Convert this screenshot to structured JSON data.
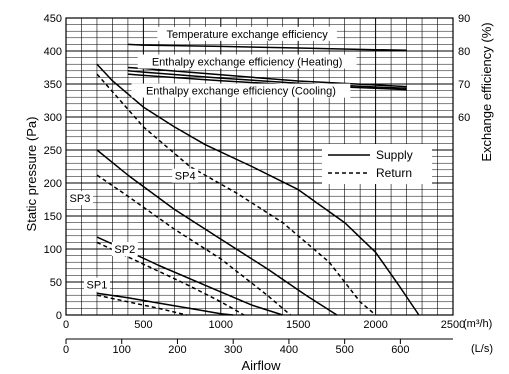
{
  "chart_data": {
    "type": "line",
    "ylabel_left": "Static pressure (Pa)",
    "ylabel_right": "Exchange efficiency (%)",
    "xlabel": "Airflow",
    "x_primary_unit": "(m³/h)",
    "x_secondary_unit": "(L/s)",
    "x_primary_range": [
      0,
      2500
    ],
    "x_primary_ticks": [
      0,
      500,
      1000,
      1500,
      2000,
      2500
    ],
    "x_secondary_range": [
      0,
      694.44
    ],
    "x_secondary_ticks": [
      0,
      100,
      200,
      300,
      400,
      500,
      600
    ],
    "y_left_range": [
      0,
      450
    ],
    "y_left_ticks": [
      0,
      50,
      100,
      150,
      200,
      250,
      300,
      350,
      400,
      450
    ],
    "y_right_range": [
      0,
      90
    ],
    "y_right_ticks_shown": [
      60,
      70,
      80,
      90
    ],
    "grid": true,
    "legend": {
      "placement": "right-middle",
      "entries": [
        {
          "label": "Supply",
          "style": "solid"
        },
        {
          "label": "Return",
          "style": "dashed"
        }
      ]
    },
    "pressure_series": [
      {
        "label": "SP4",
        "type": "Supply",
        "x": [
          200,
          300,
          500,
          700,
          900,
          1200,
          1500,
          1800,
          2000,
          2150,
          2280
        ],
        "y": [
          380,
          355,
          315,
          285,
          258,
          225,
          190,
          140,
          95,
          45,
          0
        ]
      },
      {
        "label": "SP4",
        "type": "Return",
        "x": [
          200,
          500,
          800,
          1100,
          1400,
          1700,
          1900,
          2000
        ],
        "y": [
          365,
          285,
          225,
          185,
          140,
          80,
          20,
          0
        ]
      },
      {
        "label": "SP3",
        "type": "Supply",
        "x": [
          200,
          400,
          700,
          1000,
          1300,
          1550,
          1750
        ],
        "y": [
          250,
          212,
          160,
          115,
          70,
          30,
          0
        ]
      },
      {
        "label": "SP3",
        "type": "Return",
        "x": [
          200,
          400,
          700,
          1000,
          1300,
          1450
        ],
        "y": [
          212,
          180,
          130,
          85,
          30,
          0
        ]
      },
      {
        "label": "SP2",
        "type": "Supply",
        "x": [
          200,
          400,
          600,
          800,
          1000,
          1200,
          1400
        ],
        "y": [
          118,
          97,
          75,
          55,
          35,
          15,
          0
        ]
      },
      {
        "label": "SP2",
        "type": "Return",
        "x": [
          200,
          400,
          600,
          800,
          1000,
          1150
        ],
        "y": [
          110,
          88,
          66,
          44,
          20,
          0
        ]
      },
      {
        "label": "SP1",
        "type": "Supply",
        "x": [
          200,
          400,
          600,
          800,
          1000,
          1080
        ],
        "y": [
          33,
          26,
          18,
          10,
          2,
          0
        ]
      },
      {
        "label": "SP1",
        "type": "Return",
        "x": [
          200,
          400,
          600,
          780
        ],
        "y": [
          30,
          20,
          10,
          0
        ]
      }
    ],
    "efficiency_series": [
      {
        "label": "Temperature exchange efficiency",
        "x": [
          400,
          500,
          1000,
          1500,
          2000,
          2200
        ],
        "y": [
          82,
          81.8,
          81.4,
          80.9,
          80.4,
          80.2
        ]
      },
      {
        "label": "Enthalpy exchange efficiency (Heating)",
        "x": [
          400,
          500,
          1000,
          1500,
          2000,
          2200
        ],
        "y": [
          75,
          74.7,
          72.8,
          70.9,
          69.7,
          69.2
        ]
      },
      {
        "label": "Enthalpy exchange efficiency (Heating)",
        "x": [
          400,
          500,
          1000,
          1500,
          2000,
          2200
        ],
        "y": [
          74,
          73.6,
          71.8,
          70.2,
          69.1,
          68.7
        ]
      },
      {
        "label": "Enthalpy exchange efficiency (Cooling)",
        "x": [
          400,
          500,
          1000,
          1500,
          2000,
          2200
        ],
        "y": [
          73,
          72.6,
          71,
          69.6,
          68.7,
          68.3
        ]
      }
    ],
    "annotations": [
      {
        "text": "Temperature exchange efficiency",
        "at_x": 1170,
        "at_y": 426
      },
      {
        "text": "Enthalpy exchange efficiency (Heating)",
        "at_x": 1170,
        "at_y": 384
      },
      {
        "text": "Enthalpy exchange efficiency (Cooling)",
        "at_x": 1130,
        "at_y": 340
      }
    ],
    "sp_labels": [
      {
        "text": "SP4",
        "at_x": 770,
        "at_y": 211
      },
      {
        "text": "SP3",
        "at_x": 90,
        "at_y": 177
      },
      {
        "text": "SP2",
        "at_x": 380,
        "at_y": 100
      },
      {
        "text": "SP1",
        "at_x": 200,
        "at_y": 46
      }
    ]
  }
}
